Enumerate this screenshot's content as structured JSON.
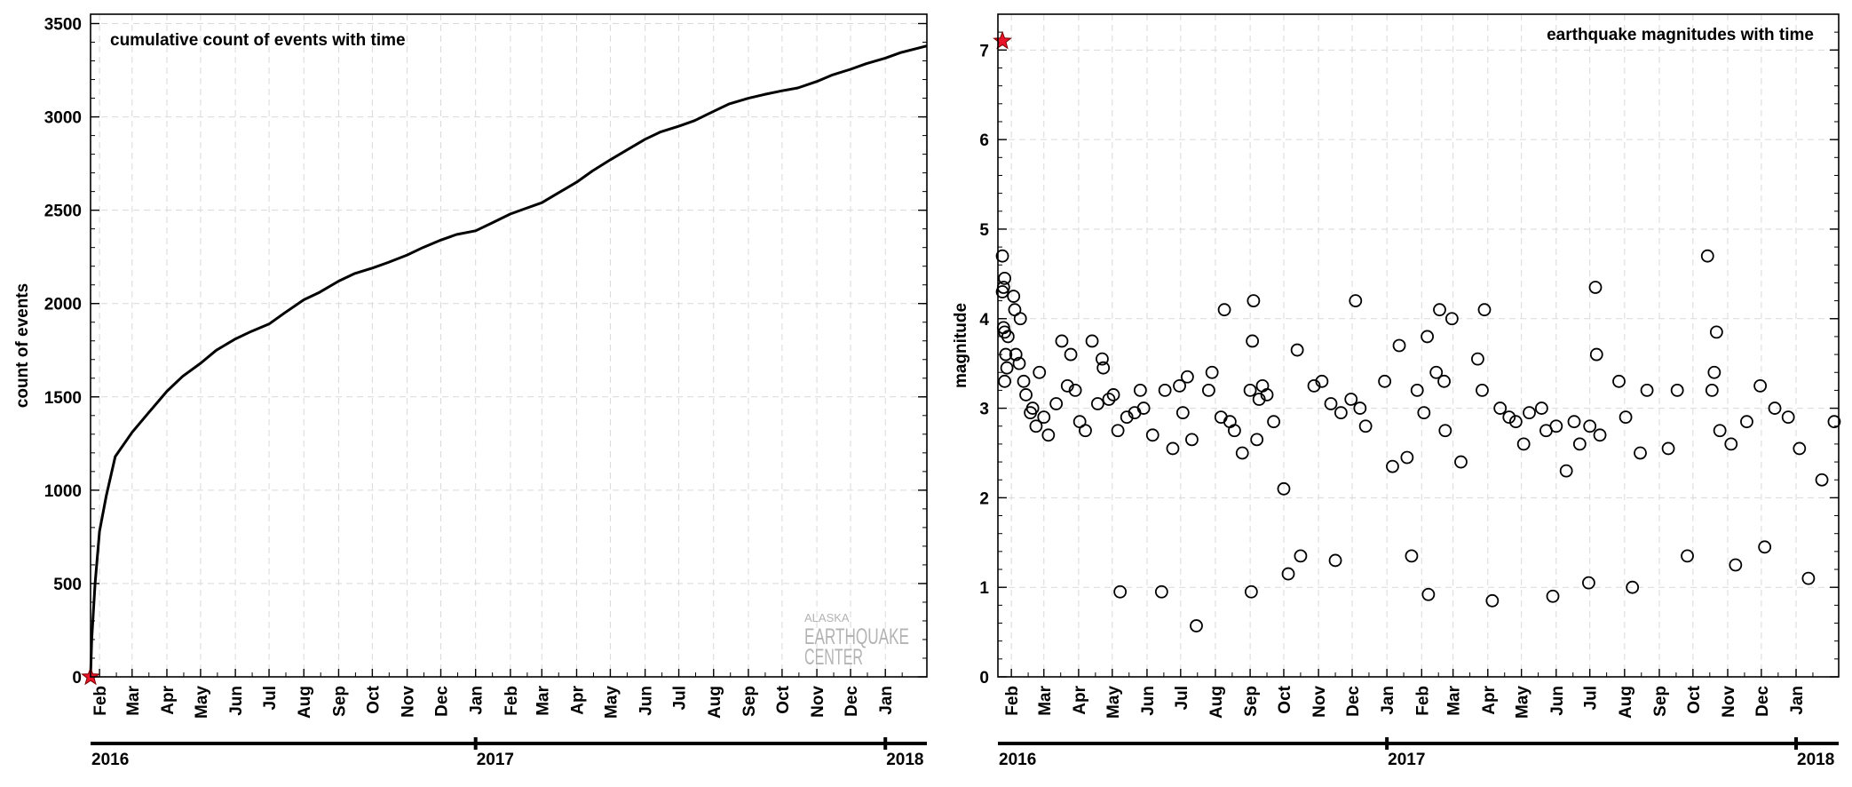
{
  "chart_data": [
    {
      "type": "line",
      "title": "cumulative count of events with time",
      "ylabel": "count of events",
      "xlabel": "",
      "xlim": [
        "2016-01-24",
        "2018-02-07"
      ],
      "ylim": [
        0,
        3550
      ],
      "yticks": [
        0,
        500,
        1000,
        1500,
        2000,
        2500,
        3000,
        3500
      ],
      "month_ticks": [
        "Feb",
        "Mar",
        "Apr",
        "May",
        "Jun",
        "Jul",
        "Aug",
        "Sep",
        "Oct",
        "Nov",
        "Dec",
        "Jan",
        "Feb",
        "Mar",
        "Apr",
        "May",
        "Jun",
        "Jul",
        "Aug",
        "Sep",
        "Oct",
        "Nov",
        "Dec",
        "Jan"
      ],
      "years": [
        "2016",
        "2017",
        "2018"
      ],
      "grid": true,
      "series": [
        {
          "x": [
            "2016-01-24",
            "2016-01-25",
            "2016-01-28",
            "2016-02-01",
            "2016-02-07",
            "2016-02-15",
            "2016-03-01",
            "2016-03-15",
            "2016-04-01",
            "2016-04-15",
            "2016-05-01",
            "2016-05-15",
            "2016-06-01",
            "2016-06-15",
            "2016-07-01",
            "2016-07-15",
            "2016-08-01",
            "2016-08-15",
            "2016-09-01",
            "2016-09-15",
            "2016-10-01",
            "2016-10-15",
            "2016-11-01",
            "2016-11-15",
            "2016-12-01",
            "2016-12-15",
            "2017-01-01",
            "2017-01-15",
            "2017-02-01",
            "2017-02-15",
            "2017-03-01",
            "2017-03-15",
            "2017-04-01",
            "2017-04-15",
            "2017-05-01",
            "2017-05-15",
            "2017-06-01",
            "2017-06-15",
            "2017-07-01",
            "2017-07-15",
            "2017-08-01",
            "2017-08-15",
            "2017-09-01",
            "2017-09-15",
            "2017-10-01",
            "2017-10-15",
            "2017-11-01",
            "2017-11-15",
            "2017-12-01",
            "2017-12-15",
            "2018-01-01",
            "2018-01-15",
            "2018-02-07"
          ],
          "y": [
            0,
            200,
            500,
            780,
            970,
            1180,
            1310,
            1410,
            1530,
            1610,
            1680,
            1750,
            1810,
            1850,
            1890,
            1950,
            2020,
            2060,
            2120,
            2160,
            2190,
            2220,
            2260,
            2300,
            2340,
            2370,
            2390,
            2430,
            2480,
            2510,
            2540,
            2590,
            2650,
            2710,
            2770,
            2820,
            2880,
            2920,
            2950,
            2980,
            3030,
            3070,
            3100,
            3120,
            3140,
            3155,
            3190,
            3225,
            3255,
            3285,
            3315,
            3345,
            3380
          ]
        }
      ],
      "mainshock": {
        "x": "2016-01-24",
        "y": 0
      }
    },
    {
      "type": "scatter",
      "title": "earthquake magnitudes with time",
      "ylabel": "magnitude",
      "xlabel": "",
      "xlim": [
        "2016-01-20",
        "2018-02-08"
      ],
      "ylim": [
        0,
        7.4
      ],
      "yticks": [
        0,
        1,
        2,
        3,
        4,
        5,
        6,
        7
      ],
      "month_ticks": [
        "Feb",
        "Mar",
        "Apr",
        "May",
        "Jun",
        "Jul",
        "Aug",
        "Sep",
        "Oct",
        "Nov",
        "Dec",
        "Jan",
        "Feb",
        "Mar",
        "Apr",
        "May",
        "Jun",
        "Jul",
        "Aug",
        "Sep",
        "Oct",
        "Nov",
        "Dec",
        "Jan"
      ],
      "years": [
        "2016",
        "2017",
        "2018"
      ],
      "grid": true,
      "mainshock": {
        "x": "2016-01-24",
        "y": 7.1
      },
      "series": [
        {
          "points": [
            [
              "2016-01-24",
              4.7
            ],
            [
              "2016-01-24",
              4.3
            ],
            [
              "2016-01-25",
              4.35
            ],
            [
              "2016-01-26",
              4.45
            ],
            [
              "2016-01-25",
              3.9
            ],
            [
              "2016-01-26",
              3.85
            ],
            [
              "2016-01-27",
              3.6
            ],
            [
              "2016-01-28",
              3.45
            ],
            [
              "2016-01-26",
              3.3
            ],
            [
              "2016-01-29",
              3.8
            ],
            [
              "2016-02-03",
              4.25
            ],
            [
              "2016-02-04",
              4.1
            ],
            [
              "2016-02-09",
              4.0
            ],
            [
              "2016-02-05",
              3.6
            ],
            [
              "2016-02-08",
              3.5
            ],
            [
              "2016-02-12",
              3.3
            ],
            [
              "2016-02-14",
              3.15
            ],
            [
              "2016-02-18",
              2.95
            ],
            [
              "2016-02-20",
              3.0
            ],
            [
              "2016-02-23",
              2.8
            ],
            [
              "2016-02-26",
              3.4
            ],
            [
              "2016-03-01",
              2.9
            ],
            [
              "2016-03-05",
              2.7
            ],
            [
              "2016-03-12",
              3.05
            ],
            [
              "2016-03-17",
              3.75
            ],
            [
              "2016-03-22",
              3.25
            ],
            [
              "2016-03-25",
              3.6
            ],
            [
              "2016-03-29",
              3.2
            ],
            [
              "2016-04-02",
              2.85
            ],
            [
              "2016-04-07",
              2.75
            ],
            [
              "2016-04-13",
              3.75
            ],
            [
              "2016-04-18",
              3.05
            ],
            [
              "2016-04-22",
              3.55
            ],
            [
              "2016-04-23",
              3.45
            ],
            [
              "2016-04-28",
              3.1
            ],
            [
              "2016-05-02",
              3.15
            ],
            [
              "2016-05-06",
              2.75
            ],
            [
              "2016-05-14",
              2.9
            ],
            [
              "2016-05-21",
              2.95
            ],
            [
              "2016-05-26",
              3.2
            ],
            [
              "2016-05-29",
              3.0
            ],
            [
              "2016-06-06",
              2.7
            ],
            [
              "2016-06-17",
              3.2
            ],
            [
              "2016-06-24",
              2.55
            ],
            [
              "2016-06-30",
              3.25
            ],
            [
              "2016-07-03",
              2.95
            ],
            [
              "2016-07-07",
              3.35
            ],
            [
              "2016-07-11",
              2.65
            ],
            [
              "2016-07-15",
              0.57
            ],
            [
              "2016-07-26",
              3.2
            ],
            [
              "2016-07-29",
              3.4
            ],
            [
              "2016-08-09",
              4.1
            ],
            [
              "2016-08-06",
              2.9
            ],
            [
              "2016-08-14",
              2.85
            ],
            [
              "2016-08-18",
              2.75
            ],
            [
              "2016-08-25",
              2.5
            ],
            [
              "2016-09-04",
              4.2
            ],
            [
              "2016-09-03",
              3.75
            ],
            [
              "2016-09-01",
              3.2
            ],
            [
              "2016-09-07",
              2.65
            ],
            [
              "2016-09-09",
              3.1
            ],
            [
              "2016-09-12",
              3.25
            ],
            [
              "2016-09-16",
              3.15
            ],
            [
              "2016-09-22",
              2.85
            ],
            [
              "2016-10-01",
              2.1
            ],
            [
              "2016-10-05",
              1.15
            ],
            [
              "2016-10-13",
              3.65
            ],
            [
              "2016-10-28",
              3.25
            ],
            [
              "2016-11-04",
              3.3
            ],
            [
              "2016-11-12",
              3.05
            ],
            [
              "2016-11-21",
              2.95
            ],
            [
              "2016-11-30",
              3.1
            ],
            [
              "2016-12-04",
              4.2
            ],
            [
              "2016-12-08",
              3.0
            ],
            [
              "2016-12-13",
              2.8
            ],
            [
              "2016-12-30",
              3.3
            ],
            [
              "2017-01-06",
              2.35
            ],
            [
              "2017-01-12",
              3.7
            ],
            [
              "2017-01-19",
              2.45
            ],
            [
              "2017-01-28",
              3.2
            ],
            [
              "2017-02-03",
              2.95
            ],
            [
              "2017-02-06",
              3.8
            ],
            [
              "2017-02-14",
              3.4
            ],
            [
              "2017-02-17",
              4.1
            ],
            [
              "2017-02-21",
              3.3
            ],
            [
              "2017-02-22",
              2.75
            ],
            [
              "2017-02-28",
              4.0
            ],
            [
              "2017-03-08",
              2.4
            ],
            [
              "2017-03-23",
              3.55
            ],
            [
              "2017-03-27",
              3.2
            ],
            [
              "2017-03-29",
              4.1
            ],
            [
              "2017-04-12",
              3.0
            ],
            [
              "2017-04-20",
              2.9
            ],
            [
              "2017-04-26",
              2.85
            ],
            [
              "2017-05-03",
              2.6
            ],
            [
              "2017-05-08",
              2.95
            ],
            [
              "2017-05-19",
              3.0
            ],
            [
              "2017-05-23",
              2.75
            ],
            [
              "2017-06-01",
              2.8
            ],
            [
              "2017-06-10",
              2.3
            ],
            [
              "2017-06-17",
              2.85
            ],
            [
              "2017-06-22",
              2.6
            ],
            [
              "2017-07-01",
              2.8
            ],
            [
              "2017-07-06",
              4.35
            ],
            [
              "2017-07-07",
              3.6
            ],
            [
              "2017-07-10",
              2.7
            ],
            [
              "2017-07-27",
              3.3
            ],
            [
              "2017-08-02",
              2.9
            ],
            [
              "2017-08-15",
              2.5
            ],
            [
              "2017-08-21",
              3.2
            ],
            [
              "2017-09-09",
              2.55
            ],
            [
              "2017-09-17",
              3.2
            ],
            [
              "2017-10-14",
              4.7
            ],
            [
              "2017-10-20",
              3.4
            ],
            [
              "2017-10-22",
              3.85
            ],
            [
              "2017-10-18",
              3.2
            ],
            [
              "2017-10-25",
              2.75
            ],
            [
              "2017-11-04",
              2.6
            ],
            [
              "2017-11-18",
              2.85
            ],
            [
              "2017-11-30",
              3.25
            ],
            [
              "2017-12-13",
              3.0
            ],
            [
              "2017-12-25",
              2.9
            ],
            [
              "2018-01-04",
              2.55
            ],
            [
              "2018-01-12",
              1.1
            ],
            [
              "2018-01-24",
              2.2
            ],
            [
              "2018-02-04",
              2.85
            ],
            [
              "2016-06-14",
              0.95
            ],
            [
              "2016-05-08",
              0.95
            ],
            [
              "2016-09-02",
              0.95
            ],
            [
              "2017-02-07",
              0.92
            ],
            [
              "2017-04-05",
              0.85
            ],
            [
              "2017-05-29",
              0.9
            ],
            [
              "2017-06-30",
              1.05
            ],
            [
              "2017-08-08",
              1.0
            ],
            [
              "2017-11-08",
              1.25
            ],
            [
              "2016-11-16",
              1.3
            ],
            [
              "2016-10-16",
              1.35
            ],
            [
              "2017-01-23",
              1.35
            ],
            [
              "2017-09-26",
              1.35
            ],
            [
              "2017-12-04",
              1.45
            ]
          ]
        }
      ]
    }
  ],
  "watermark": {
    "line1": "ALASKA",
    "line2": "EARTHQUAKE",
    "line3": "CENTER"
  }
}
